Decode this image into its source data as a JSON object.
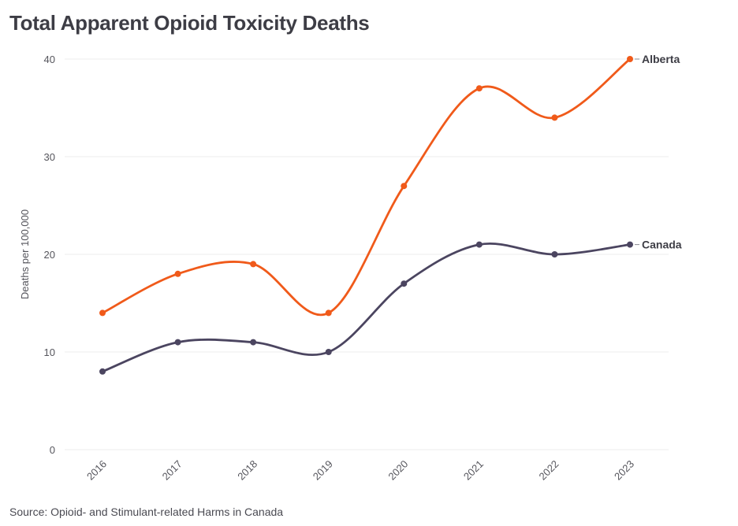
{
  "chart_data": {
    "type": "line",
    "title": "Total Apparent Opioid Toxicity Deaths",
    "source": "Source: Opioid- and Stimulant-related Harms in Canada",
    "ylabel": "Deaths per 100,000",
    "xlabel": "",
    "x": [
      "2016",
      "2017",
      "2018",
      "2019",
      "2020",
      "2021",
      "2022",
      "2023"
    ],
    "ylim": [
      0,
      40
    ],
    "yticks": [
      0,
      10,
      20,
      30,
      40
    ],
    "grid": "horizontal",
    "series": [
      {
        "name": "Alberta",
        "color": "#f05a1a",
        "values": [
          14,
          18,
          19,
          14,
          27,
          37,
          34,
          40
        ]
      },
      {
        "name": "Canada",
        "color": "#4b4560",
        "values": [
          8,
          11,
          11,
          10,
          17,
          21,
          20,
          21
        ]
      }
    ]
  }
}
